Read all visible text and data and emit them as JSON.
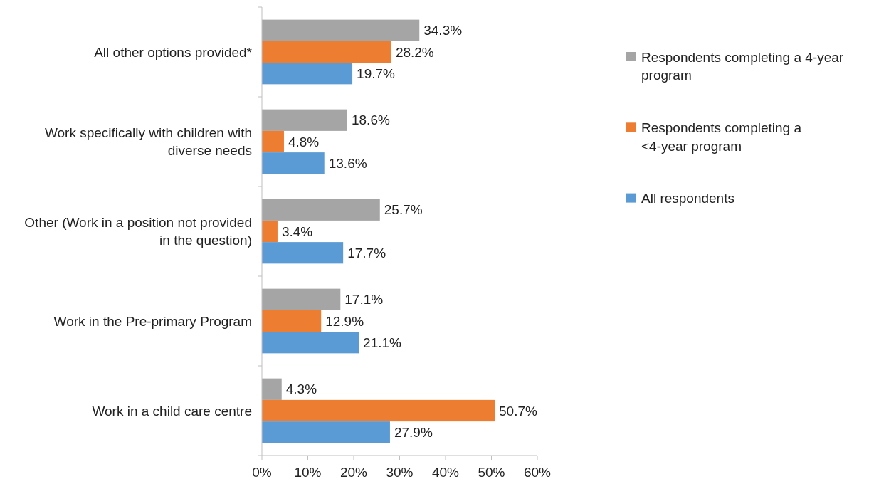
{
  "chart_data": {
    "type": "bar",
    "orientation": "horizontal",
    "categories": [
      "All other options provided*",
      "Work specifically with children with diverse needs",
      "Other (Work in a position not provided in the question)",
      "Work in the Pre-primary Program",
      "Work in a child care centre"
    ],
    "series": [
      {
        "name": "Respondents completing a 4-year program",
        "color": "#a5a5a5",
        "values": [
          34.3,
          18.6,
          25.7,
          17.1,
          4.3
        ],
        "value_labels": [
          "34.3%",
          "18.6%",
          "25.7%",
          "17.1%",
          "4.3%"
        ]
      },
      {
        "name": "Respondents completing a <4-year program",
        "color": "#ed7d31",
        "values": [
          28.2,
          4.8,
          3.4,
          12.9,
          50.7
        ],
        "value_labels": [
          "28.2%",
          "4.8%",
          "3.4%",
          "12.9%",
          "50.7%"
        ]
      },
      {
        "name": "All respondents",
        "color": "#5b9bd5",
        "values": [
          19.7,
          13.6,
          17.7,
          21.1,
          27.9
        ],
        "value_labels": [
          "19.7%",
          "13.6%",
          "17.7%",
          "21.1%",
          "27.9%"
        ]
      }
    ],
    "xlim": [
      0,
      60
    ],
    "xticks": [
      {
        "value": 0,
        "label": "0%"
      },
      {
        "value": 10,
        "label": "10%"
      },
      {
        "value": 20,
        "label": "20%"
      },
      {
        "value": 30,
        "label": "30%"
      },
      {
        "value": 40,
        "label": "40%"
      },
      {
        "value": 50,
        "label": "50%"
      },
      {
        "value": 60,
        "label": "60%"
      }
    ],
    "grid": false,
    "legend": "right"
  }
}
